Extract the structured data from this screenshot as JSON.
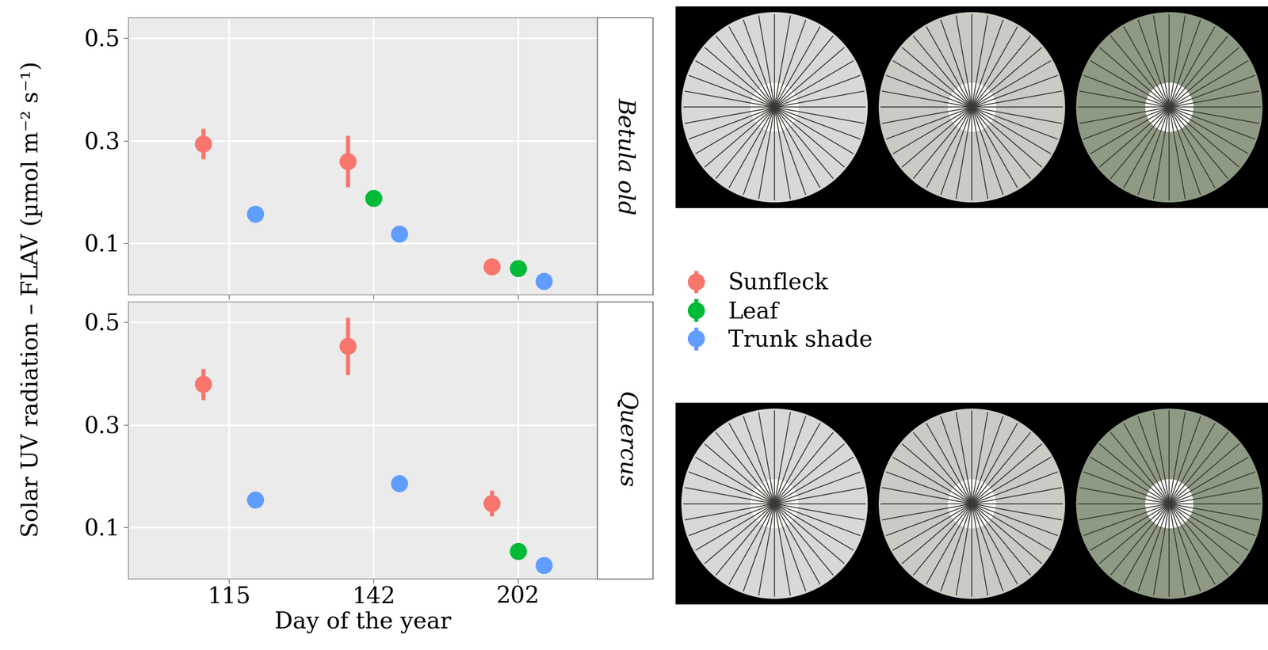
{
  "chart_data": [
    {
      "type": "scatter",
      "title": "Betula old",
      "ylabel": "Solar UV radiation – FLAV (µmol m⁻² s⁻¹)",
      "categories": [
        "115",
        "142",
        "202"
      ],
      "ylim": [
        0,
        0.54
      ],
      "yticks": [
        0.1,
        0.3,
        0.5
      ],
      "grid": true,
      "tick_labels": "y",
      "legend": "right",
      "marker": "circle",
      "series": [
        {
          "name": "Sunfleck",
          "color": "#F8766D",
          "values": [
            0.294,
            0.26,
            0.054
          ],
          "errors": [
            0.03,
            0.05,
            0.012
          ]
        },
        {
          "name": "Leaf",
          "color": "#00BA38",
          "values": [
            null,
            0.188,
            0.051
          ],
          "errors": [
            null,
            null,
            null
          ]
        },
        {
          "name": "Trunk shade",
          "color": "#619CFF",
          "values": [
            0.157,
            0.118,
            0.026
          ],
          "errors": [
            null,
            null,
            null
          ]
        }
      ]
    },
    {
      "type": "scatter",
      "title": "Quercus",
      "xlabel": "Day of the year",
      "categories": [
        "115",
        "142",
        "202"
      ],
      "ylim": [
        0,
        0.54
      ],
      "yticks": [
        0.1,
        0.3,
        0.5
      ],
      "grid": true,
      "marker": "circle",
      "series": [
        {
          "name": "Sunfleck",
          "color": "#F8766D",
          "values": [
            0.379,
            0.453,
            0.147
          ],
          "errors": [
            0.03,
            0.056,
            0.025
          ]
        },
        {
          "name": "Leaf",
          "color": "#00BA38",
          "values": [
            null,
            null,
            0.053
          ],
          "errors": [
            null,
            null,
            null
          ]
        },
        {
          "name": "Trunk shade",
          "color": "#619CFF",
          "values": [
            0.153,
            0.185,
            0.026
          ],
          "errors": [
            null,
            null,
            null
          ]
        }
      ]
    }
  ]
}
